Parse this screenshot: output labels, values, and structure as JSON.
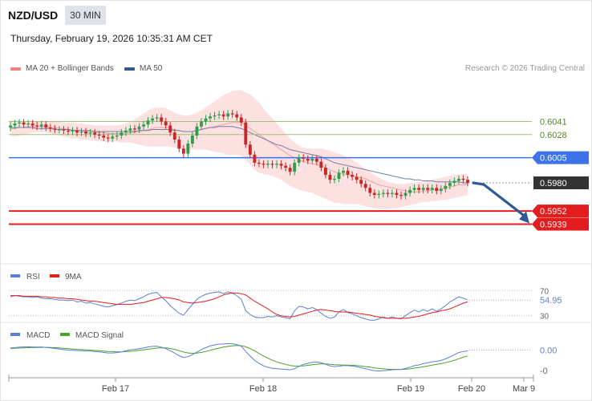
{
  "header": {
    "symbol": "NZD/USD",
    "timeframe": "30 MIN",
    "datetime": "Thursday, February 19, 2026 10:35:31 AM CET",
    "copyright": "Research © 2026 Trading Central"
  },
  "legend": {
    "ma20": {
      "label": "MA 20 + Bollinger Bands",
      "color": "#f08080"
    },
    "ma50": {
      "label": "MA 50",
      "color": "#2f5a96"
    }
  },
  "colors": {
    "up": "#2f9e4f",
    "down": "#c62828",
    "bollinger_fill": "#fde0e0",
    "resistance_green": "#9ac27a",
    "pivot_blue": "#3d73e8",
    "support_red": "#e11d1d",
    "current_price": "#333333",
    "arrow": "#2f5a96",
    "rsi": "#5b7fd9",
    "rsi_ma": "#e11d1d",
    "macd": "#5b7fd9",
    "macd_signal": "#48a32a"
  },
  "chart_data": [
    {
      "type": "candlestick",
      "name": "price",
      "x_labels": [
        "Feb 17",
        "Feb 18",
        "Feb 19",
        "Feb 20",
        "Mar 9"
      ],
      "levels": [
        {
          "value": 0.6041,
          "label": "0.6041",
          "kind": "resistance"
        },
        {
          "value": 0.6028,
          "label": "0.6028",
          "kind": "resistance"
        },
        {
          "value": 0.6005,
          "label": "0.6005",
          "kind": "pivot"
        },
        {
          "value": 0.598,
          "label": "0.5980",
          "kind": "current"
        },
        {
          "value": 0.5952,
          "label": "0.5952",
          "kind": "support"
        },
        {
          "value": 0.5939,
          "label": "0.5939",
          "kind": "support"
        }
      ],
      "ylim": [
        0.5929,
        0.6082
      ],
      "close": [
        0.6037,
        0.6039,
        0.604,
        0.6038,
        0.6039,
        0.6037,
        0.6036,
        0.6038,
        0.6035,
        0.6034,
        0.6033,
        0.6033,
        0.6032,
        0.6031,
        0.6032,
        0.603,
        0.6031,
        0.6029,
        0.603,
        0.6028,
        0.6027,
        0.6025,
        0.6024,
        0.6026,
        0.6027,
        0.603,
        0.6032,
        0.6034,
        0.6033,
        0.6036,
        0.6038,
        0.6042,
        0.6044,
        0.6045,
        0.6041,
        0.6037,
        0.603,
        0.6023,
        0.6014,
        0.6009,
        0.6019,
        0.6027,
        0.6036,
        0.6041,
        0.6044,
        0.6046,
        0.6047,
        0.6048,
        0.6046,
        0.6049,
        0.6048,
        0.6045,
        0.604,
        0.6018,
        0.6008,
        0.6,
        0.5999,
        0.5998,
        0.5999,
        0.5998,
        0.5999,
        0.5997,
        0.5995,
        0.5991,
        0.6,
        0.6005,
        0.6004,
        0.6002,
        0.6004,
        0.6001,
        0.5995,
        0.5988,
        0.5983,
        0.5984,
        0.599,
        0.5992,
        0.5988,
        0.5986,
        0.5983,
        0.5979,
        0.5975,
        0.597,
        0.5968,
        0.5969,
        0.597,
        0.5969,
        0.597,
        0.5968,
        0.5967,
        0.597,
        0.5973,
        0.5975,
        0.5973,
        0.5975,
        0.5973,
        0.5975,
        0.5972,
        0.5974,
        0.5977,
        0.598,
        0.5982,
        0.5984,
        0.5983,
        0.598
      ],
      "ma20": [
        0.6034,
        0.6034,
        0.6035,
        0.6035,
        0.6036,
        0.6036,
        0.6036,
        0.6036,
        0.6036,
        0.6035,
        0.6035,
        0.6034,
        0.6034,
        0.6033,
        0.6033,
        0.6032,
        0.6032,
        0.6031,
        0.6031,
        0.603,
        0.603,
        0.603,
        0.6029,
        0.6029,
        0.6029,
        0.6029,
        0.6029,
        0.603,
        0.603,
        0.6031,
        0.6032,
        0.6033,
        0.6034,
        0.6035,
        0.6035,
        0.6035,
        0.6034,
        0.6033,
        0.6032,
        0.6031,
        0.6031,
        0.6031,
        0.6032,
        0.6033,
        0.6034,
        0.6035,
        0.6036,
        0.6037,
        0.6038,
        0.6039,
        0.604,
        0.604,
        0.604,
        0.6037,
        0.6034,
        0.6031,
        0.6028,
        0.6025,
        0.6022,
        0.6019,
        0.6016,
        0.6013,
        0.601,
        0.6007,
        0.6005,
        0.6003,
        0.6001,
        0.6,
        0.5999,
        0.5998,
        0.5997,
        0.5995,
        0.5993,
        0.5991,
        0.599,
        0.5989,
        0.5988,
        0.5987,
        0.5986,
        0.5985,
        0.5984,
        0.5982,
        0.598,
        0.5978,
        0.5977,
        0.5976,
        0.5975,
        0.5974,
        0.5973,
        0.5972,
        0.5971,
        0.5971,
        0.5971,
        0.5972,
        0.5972,
        0.5973,
        0.5973,
        0.5974,
        0.5975,
        0.5976,
        0.5977,
        0.5978,
        0.5978,
        0.5979
      ],
      "ma50": [
        0.6035,
        0.6035,
        0.6035,
        0.6035,
        0.6035,
        0.6035,
        0.6034,
        0.6034,
        0.6034,
        0.6034,
        0.6033,
        0.6033,
        0.6033,
        0.6033,
        0.6032,
        0.6032,
        0.6032,
        0.6032,
        0.6032,
        0.6031,
        0.6031,
        0.6031,
        0.6031,
        0.6031,
        0.6031,
        0.6031,
        0.6031,
        0.6031,
        0.6031,
        0.6032,
        0.6032,
        0.6032,
        0.6033,
        0.6033,
        0.6033,
        0.6033,
        0.6033,
        0.6032,
        0.6032,
        0.6031,
        0.6031,
        0.6031,
        0.6032,
        0.6033,
        0.6034,
        0.6035,
        0.6035,
        0.6036,
        0.6036,
        0.6036,
        0.6036,
        0.6035,
        0.6034,
        0.6032,
        0.603,
        0.6028,
        0.6026,
        0.6024,
        0.6022,
        0.602,
        0.6018,
        0.6017,
        0.6015,
        0.6013,
        0.6012,
        0.6011,
        0.601,
        0.6009,
        0.6008,
        0.6007,
        0.6006,
        0.6004,
        0.6002,
        0.6,
        0.5999,
        0.5998,
        0.5997,
        0.5996,
        0.5995,
        0.5994,
        0.5993,
        0.5992,
        0.5991,
        0.599,
        0.5989,
        0.5988,
        0.5987,
        0.5986,
        0.5985,
        0.5984,
        0.5984,
        0.5983,
        0.5983,
        0.5982,
        0.5982,
        0.5982,
        0.5981,
        0.5981,
        0.5981,
        0.5981,
        0.5981,
        0.5981,
        0.598,
        0.598
      ],
      "bb_upper": [
        0.6042,
        0.6042,
        0.6042,
        0.6041,
        0.6041,
        0.6041,
        0.6041,
        0.6041,
        0.6041,
        0.6041,
        0.6041,
        0.6041,
        0.604,
        0.604,
        0.604,
        0.6039,
        0.6039,
        0.6038,
        0.6038,
        0.6037,
        0.6037,
        0.6037,
        0.6037,
        0.6037,
        0.6037,
        0.6038,
        0.6039,
        0.6041,
        0.6043,
        0.6046,
        0.6049,
        0.6052,
        0.6054,
        0.6055,
        0.6055,
        0.6054,
        0.6052,
        0.605,
        0.6048,
        0.6047,
        0.6047,
        0.6048,
        0.605,
        0.6052,
        0.6055,
        0.6058,
        0.6061,
        0.6064,
        0.6067,
        0.6069,
        0.6071,
        0.6072,
        0.6072,
        0.607,
        0.6068,
        0.6064,
        0.606,
        0.6054,
        0.6049,
        0.6044,
        0.6039,
        0.6034,
        0.6029,
        0.6024,
        0.602,
        0.6017,
        0.6015,
        0.6014,
        0.6014,
        0.6014,
        0.6014,
        0.6013,
        0.6012,
        0.601,
        0.6009,
        0.6007,
        0.6005,
        0.6003,
        0.6,
        0.5997,
        0.5994,
        0.5991,
        0.5988,
        0.5985,
        0.5983,
        0.5981,
        0.598,
        0.5979,
        0.5979,
        0.5979,
        0.598,
        0.598,
        0.5981,
        0.5981,
        0.5982,
        0.5983,
        0.5984,
        0.5985,
        0.5986,
        0.5987,
        0.5988,
        0.5988,
        0.5989,
        0.5989
      ],
      "bb_lower": [
        0.6026,
        0.6026,
        0.6027,
        0.6028,
        0.6029,
        0.603,
        0.603,
        0.603,
        0.603,
        0.6029,
        0.6028,
        0.6027,
        0.6026,
        0.6025,
        0.6024,
        0.6024,
        0.6023,
        0.6023,
        0.6022,
        0.6022,
        0.6021,
        0.6021,
        0.6021,
        0.6021,
        0.6021,
        0.602,
        0.602,
        0.602,
        0.6019,
        0.6018,
        0.6017,
        0.6016,
        0.6016,
        0.6016,
        0.6016,
        0.6016,
        0.6016,
        0.6015,
        0.6014,
        0.6013,
        0.6013,
        0.6013,
        0.6013,
        0.6013,
        0.6013,
        0.6012,
        0.6011,
        0.601,
        0.6009,
        0.6008,
        0.6008,
        0.6008,
        0.6007,
        0.6003,
        0.5998,
        0.5993,
        0.599,
        0.5989,
        0.5988,
        0.5987,
        0.5985,
        0.5983,
        0.598,
        0.5977,
        0.5975,
        0.5973,
        0.5972,
        0.5971,
        0.597,
        0.5968,
        0.5966,
        0.5964,
        0.5962,
        0.596,
        0.596,
        0.5959,
        0.5959,
        0.5959,
        0.5959,
        0.5958,
        0.5957,
        0.5956,
        0.5955,
        0.5954,
        0.5954,
        0.5954,
        0.5955,
        0.5955,
        0.5956,
        0.5957,
        0.5958,
        0.5959,
        0.596,
        0.5961,
        0.5961,
        0.5962,
        0.5962,
        0.5963,
        0.5963,
        0.5964,
        0.5965,
        0.5966,
        0.5967,
        0.5968
      ]
    },
    {
      "type": "line",
      "name": "RSI",
      "legend": [
        {
          "label": "RSI",
          "color": "#5b7fd9"
        },
        {
          "label": "9MA",
          "color": "#e11d1d"
        }
      ],
      "ticks": [
        {
          "value": 70,
          "label": "70"
        },
        {
          "value": 30,
          "label": "30"
        }
      ],
      "last_value": 54.95,
      "last_label": "54.95",
      "ylim": [
        22,
        78
      ],
      "series": [
        {
          "name": "RSI",
          "values": [
            60,
            62,
            61,
            60,
            60,
            59,
            60,
            58,
            57,
            57,
            56,
            55,
            55,
            54,
            55,
            52,
            53,
            50,
            51,
            49,
            47,
            45,
            44,
            46,
            48,
            50,
            53,
            55,
            54,
            57,
            60,
            64,
            66,
            67,
            60,
            54,
            46,
            40,
            34,
            31,
            40,
            48,
            56,
            61,
            64,
            66,
            67,
            68,
            65,
            68,
            66,
            62,
            56,
            38,
            32,
            28,
            27,
            27,
            29,
            28,
            30,
            28,
            27,
            25,
            38,
            45,
            44,
            41,
            43,
            40,
            34,
            29,
            26,
            28,
            36,
            40,
            35,
            33,
            30,
            27,
            25,
            23,
            23,
            25,
            28,
            26,
            28,
            26,
            25,
            30,
            35,
            39,
            36,
            40,
            37,
            41,
            37,
            41,
            46,
            52,
            56,
            60,
            58,
            55
          ]
        },
        {
          "name": "9MA",
          "values": [
            62,
            62,
            62,
            61,
            61,
            61,
            61,
            60,
            60,
            59,
            59,
            58,
            58,
            57,
            57,
            56,
            55,
            54,
            53,
            53,
            52,
            51,
            50,
            49,
            48,
            48,
            48,
            48,
            49,
            50,
            51,
            53,
            55,
            57,
            59,
            59,
            58,
            57,
            55,
            52,
            51,
            50,
            51,
            52,
            53,
            55,
            57,
            60,
            63,
            65,
            66,
            66,
            65,
            63,
            58,
            53,
            49,
            45,
            41,
            36,
            32,
            30,
            29,
            28,
            29,
            31,
            33,
            35,
            37,
            39,
            40,
            39,
            38,
            37,
            36,
            36,
            36,
            35,
            34,
            33,
            32,
            31,
            29,
            28,
            27,
            26,
            26,
            26,
            26,
            26,
            27,
            28,
            29,
            31,
            33,
            35,
            36,
            38,
            39,
            41,
            44,
            47,
            50,
            52
          ]
        }
      ]
    },
    {
      "type": "line",
      "name": "MACD",
      "legend": [
        {
          "label": "MACD",
          "color": "#5b7fd9"
        },
        {
          "label": "MACD Signal",
          "color": "#48a32a"
        }
      ],
      "ticks": [
        {
          "value": 0.0,
          "label": "0.00"
        },
        {
          "value": -0.0011,
          "label": "-0"
        }
      ],
      "ylim": [
        -0.0014,
        0.0004
      ],
      "series": [
        {
          "name": "MACD",
          "values": [
            0.0001,
            0.00012,
            0.00015,
            0.00016,
            0.00017,
            0.00016,
            0.00015,
            0.00016,
            0.00014,
            0.00011,
            8e-05,
            5e-05,
            2e-05,
            -1e-05,
            -2e-05,
            -4e-05,
            -4e-05,
            -6e-05,
            -6e-05,
            -8e-05,
            -0.0001,
            -0.00013,
            -0.00016,
            -0.00016,
            -0.00014,
            -0.0001,
            -5e-05,
            1e-05,
            3e-05,
            7e-05,
            0.00011,
            0.00016,
            0.00019,
            0.0002,
            0.00015,
            7e-05,
            -4e-05,
            -0.00017,
            -0.00031,
            -0.0004,
            -0.00036,
            -0.00025,
            -0.00012,
            2e-05,
            0.00012,
            0.00021,
            0.00027,
            0.00031,
            0.00032,
            0.00034,
            0.00033,
            0.00029,
            0.0002,
            -8e-05,
            -0.00033,
            -0.00055,
            -0.00072,
            -0.00085,
            -0.00093,
            -0.00098,
            -0.001,
            -0.00102,
            -0.00104,
            -0.00106,
            -0.001,
            -0.00088,
            -0.00078,
            -0.00072,
            -0.00066,
            -0.00064,
            -0.00068,
            -0.00076,
            -0.00085,
            -0.00089,
            -0.00087,
            -0.00083,
            -0.00084,
            -0.00086,
            -0.0009,
            -0.00095,
            -0.001,
            -0.00106,
            -0.00111,
            -0.00112,
            -0.00111,
            -0.00109,
            -0.00106,
            -0.00105,
            -0.00104,
            -0.00099,
            -0.00092,
            -0.00084,
            -0.0008,
            -0.00073,
            -0.00069,
            -0.00063,
            -0.00061,
            -0.00056,
            -0.00048,
            -0.00037,
            -0.00026,
            -0.00014,
            -8e-05,
            -5e-05
          ]
        },
        {
          "name": "MACD Signal",
          "values": [
            8e-05,
            9e-05,
            0.0001,
            0.00011,
            0.00012,
            0.00013,
            0.00013,
            0.00014,
            0.00014,
            0.00013,
            0.00012,
            0.00011,
            9e-05,
            7e-05,
            5e-05,
            3e-05,
            2e-05,
            0.0,
            -1e-05,
            -3e-05,
            -4e-05,
            -6e-05,
            -8e-05,
            -9e-05,
            -0.0001,
            -0.0001,
            -9e-05,
            -7e-05,
            -5e-05,
            -2e-05,
            1e-05,
            4e-05,
            7e-05,
            0.0001,
            0.00011,
            0.00011,
            8e-05,
            3e-05,
            -4e-05,
            -0.00011,
            -0.00016,
            -0.00018,
            -0.00017,
            -0.00013,
            -8e-05,
            -2e-05,
            4e-05,
            0.0001,
            0.00015,
            0.00019,
            0.00022,
            0.00024,
            0.00023,
            0.00017,
            7e-05,
            -5e-05,
            -0.00019,
            -0.00032,
            -0.00044,
            -0.00055,
            -0.00064,
            -0.00071,
            -0.00077,
            -0.00083,
            -0.00086,
            -0.00086,
            -0.00085,
            -0.00082,
            -0.00079,
            -0.00076,
            -0.00074,
            -0.00075,
            -0.00077,
            -0.00079,
            -0.0008,
            -0.00081,
            -0.00081,
            -0.00082,
            -0.00084,
            -0.00086,
            -0.00089,
            -0.00092,
            -0.00096,
            -0.00099,
            -0.00101,
            -0.00103,
            -0.00104,
            -0.00104,
            -0.00104,
            -0.00103,
            -0.00101,
            -0.00097,
            -0.00094,
            -0.0009,
            -0.00086,
            -0.00081,
            -0.00077,
            -0.00073,
            -0.00068,
            -0.00062,
            -0.00055,
            -0.00047,
            -0.00039,
            -0.00032
          ]
        }
      ]
    }
  ]
}
